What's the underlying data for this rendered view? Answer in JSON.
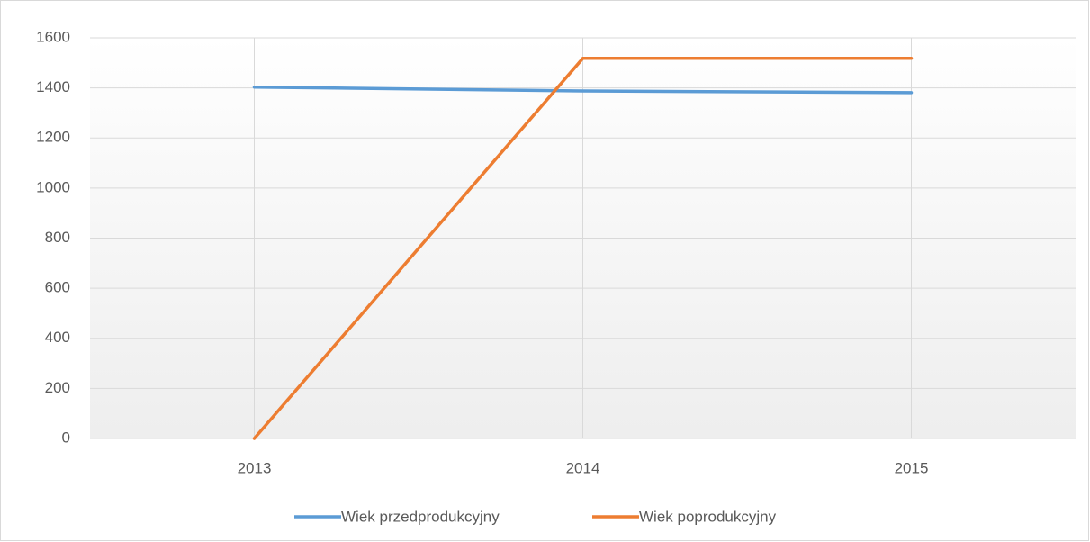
{
  "chart_data": {
    "type": "line",
    "categories": [
      "2013",
      "2014",
      "2015"
    ],
    "series": [
      {
        "name": "Wiek przedprodukcyjny",
        "color": "#5b9bd5",
        "values": [
          1403,
          1388,
          1381
        ]
      },
      {
        "name": "Wiek poprodukcyjny",
        "color": "#ed7d31",
        "values": [
          0,
          1518,
          1518
        ]
      }
    ],
    "ylim": [
      0,
      1600
    ],
    "yticks": [
      0,
      200,
      400,
      600,
      800,
      1000,
      1200,
      1400,
      1600
    ],
    "grid": true,
    "legend": "bottom"
  }
}
